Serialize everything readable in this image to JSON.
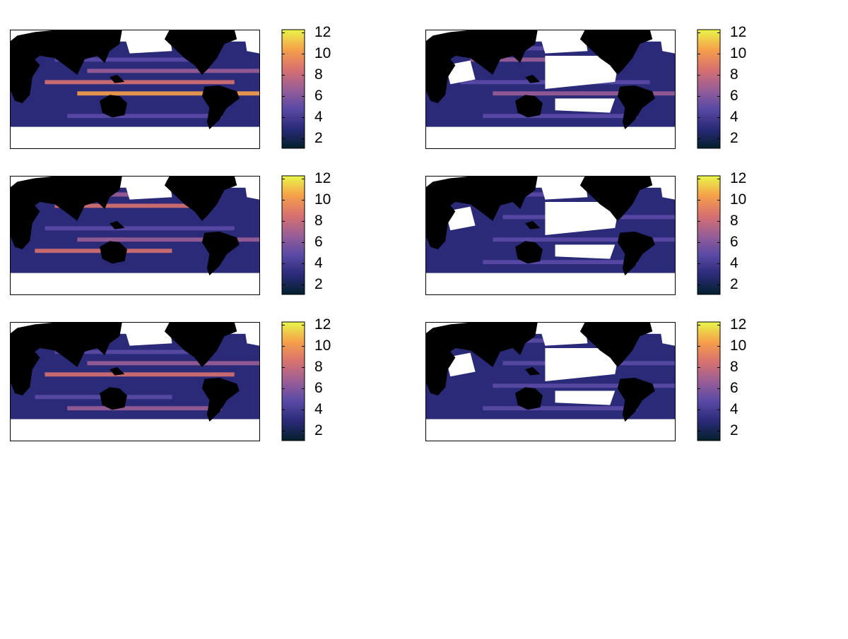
{
  "chart_data": [
    {
      "type": "map",
      "colorbar": {
        "clim": [
          1.1,
          12.3
        ],
        "ticks": [
          2,
          4,
          6,
          8,
          10,
          12
        ],
        "colormap": [
          "#04202c",
          "#2a2a78",
          "#5a4aa6",
          "#9a5e96",
          "#d8716f",
          "#f6a04a",
          "#e8f64a"
        ]
      }
    },
    {
      "type": "map",
      "colorbar": {
        "clim": [
          1.1,
          12.3
        ],
        "ticks": [
          2,
          4,
          6,
          8,
          10,
          12
        ],
        "colormap": [
          "#04202c",
          "#2a2a78",
          "#5a4aa6",
          "#9a5e96",
          "#d8716f",
          "#f6a04a",
          "#e8f64a"
        ]
      }
    },
    {
      "type": "map",
      "colorbar": {
        "clim": [
          1.1,
          12.3
        ],
        "ticks": [
          2,
          4,
          6,
          8,
          10,
          12
        ],
        "colormap": [
          "#04202c",
          "#2a2a78",
          "#5a4aa6",
          "#9a5e96",
          "#d8716f",
          "#f6a04a",
          "#e8f64a"
        ]
      }
    },
    {
      "type": "map",
      "colorbar": {
        "clim": [
          1.1,
          12.3
        ],
        "ticks": [
          2,
          4,
          6,
          8,
          10,
          12
        ],
        "colormap": [
          "#04202c",
          "#2a2a78",
          "#5a4aa6",
          "#9a5e96",
          "#d8716f",
          "#f6a04a",
          "#e8f64a"
        ]
      }
    },
    {
      "type": "map",
      "colorbar": {
        "clim": [
          1.1,
          12.3
        ],
        "ticks": [
          2,
          4,
          6,
          8,
          10,
          12
        ],
        "colormap": [
          "#04202c",
          "#2a2a78",
          "#5a4aa6",
          "#9a5e96",
          "#d8716f",
          "#f6a04a",
          "#e8f64a"
        ]
      }
    },
    {
      "type": "map",
      "colorbar": {
        "clim": [
          1.1,
          12.3
        ],
        "ticks": [
          2,
          4,
          6,
          8,
          10,
          12
        ],
        "colormap": [
          "#04202c",
          "#2a2a78",
          "#5a4aa6",
          "#9a5e96",
          "#d8716f",
          "#f6a04a",
          "#e8f64a"
        ]
      }
    }
  ]
}
